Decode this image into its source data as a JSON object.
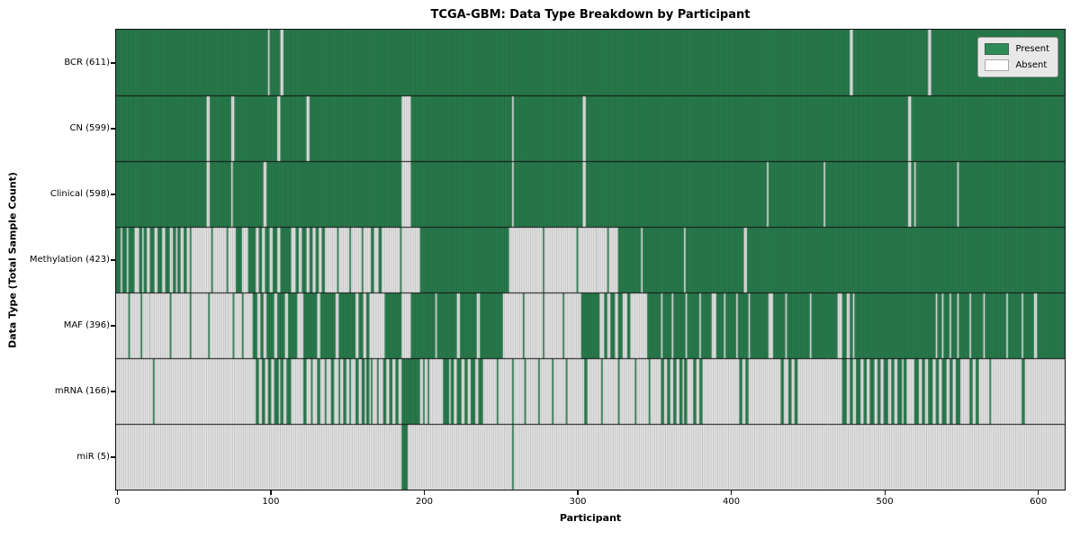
{
  "chart_data": {
    "type": "heatmap",
    "title": "TCGA-GBM: Data Type Breakdown by Participant",
    "xlabel": "Participant",
    "ylabel": "Data Type (Total Sample Count)",
    "x_ticks": [
      "0",
      "100",
      "200",
      "300",
      "400",
      "500",
      "600"
    ],
    "x_tick_values": [
      0,
      100,
      200,
      300,
      400,
      500,
      600
    ],
    "x_range": [
      -0.5,
      617.5
    ],
    "n_participants": 618,
    "grid": false,
    "legend_position": "upper right",
    "colors": {
      "present": "#2e8b57",
      "absent": "#ffffff",
      "bar_edge": "rgba(0,0,0,0.42)",
      "row_divider": "#111111",
      "legend_bg": "#e8e8e8"
    },
    "legend": {
      "entries": [
        {
          "label": "Present",
          "color": "#2e8b57"
        },
        {
          "label": "Absent",
          "color": "#ffffff"
        }
      ]
    },
    "rows": [
      {
        "label": "BCR (611)",
        "name": "BCR",
        "count": 611,
        "default": "present",
        "absent_runs": [
          [
            99,
            100
          ],
          [
            107,
            109
          ],
          [
            478,
            480
          ],
          [
            529,
            531
          ]
        ]
      },
      {
        "label": "CN (599)",
        "name": "CN",
        "count": 599,
        "default": "present",
        "absent_runs": [
          [
            59,
            61
          ],
          [
            75,
            77
          ],
          [
            105,
            107
          ],
          [
            124,
            126
          ],
          [
            186,
            192
          ],
          [
            258,
            259
          ],
          [
            304,
            306
          ],
          [
            516,
            518
          ]
        ]
      },
      {
        "label": "Clinical (598)",
        "name": "Clinical",
        "count": 598,
        "default": "present",
        "absent_runs": [
          [
            59,
            61
          ],
          [
            75,
            76
          ],
          [
            96,
            98
          ],
          [
            186,
            192
          ],
          [
            258,
            259
          ],
          [
            304,
            306
          ],
          [
            424,
            425
          ],
          [
            461,
            462
          ],
          [
            516,
            518
          ],
          [
            520,
            521
          ],
          [
            548,
            549
          ]
        ]
      },
      {
        "label": "Methylation (423)",
        "name": "Methylation",
        "count": 423,
        "default": "present",
        "absent_runs": [
          [
            3,
            4
          ],
          [
            7,
            8
          ],
          [
            12,
            15
          ],
          [
            17,
            18
          ],
          [
            20,
            22
          ],
          [
            25,
            27
          ],
          [
            30,
            32
          ],
          [
            35,
            37
          ],
          [
            39,
            40
          ],
          [
            42,
            44
          ],
          [
            46,
            48
          ],
          [
            49,
            62
          ],
          [
            63,
            72
          ],
          [
            73,
            78
          ],
          [
            82,
            86
          ],
          [
            91,
            93
          ],
          [
            95,
            97
          ],
          [
            100,
            102
          ],
          [
            105,
            107
          ],
          [
            114,
            117
          ],
          [
            119,
            121
          ],
          [
            124,
            126
          ],
          [
            128,
            130
          ],
          [
            132,
            134
          ],
          [
            136,
            144
          ],
          [
            145,
            152
          ],
          [
            153,
            160
          ],
          [
            161,
            166
          ],
          [
            168,
            171
          ],
          [
            173,
            185
          ],
          [
            186,
            198
          ],
          [
            256,
            278
          ],
          [
            279,
            300
          ],
          [
            301,
            313
          ],
          [
            313,
            320
          ],
          [
            321,
            327
          ],
          [
            342,
            343
          ],
          [
            370,
            371
          ],
          [
            409,
            411
          ]
        ]
      },
      {
        "label": "MAF (396)",
        "name": "MAF",
        "count": 396,
        "default": "present",
        "absent_runs": [
          [
            0,
            8
          ],
          [
            9,
            16
          ],
          [
            17,
            22
          ],
          [
            22,
            35
          ],
          [
            36,
            48
          ],
          [
            49,
            60
          ],
          [
            61,
            71
          ],
          [
            71,
            76
          ],
          [
            77,
            82
          ],
          [
            83,
            89
          ],
          [
            92,
            94
          ],
          [
            96,
            98
          ],
          [
            103,
            105
          ],
          [
            110,
            112
          ],
          [
            118,
            122
          ],
          [
            131,
            133
          ],
          [
            143,
            145
          ],
          [
            156,
            158
          ],
          [
            161,
            163
          ],
          [
            165,
            175
          ],
          [
            186,
            192
          ],
          [
            208,
            209
          ],
          [
            222,
            224
          ],
          [
            235,
            237
          ],
          [
            252,
            265
          ],
          [
            266,
            278
          ],
          [
            279,
            291
          ],
          [
            292,
            303
          ],
          [
            315,
            318
          ],
          [
            320,
            322
          ],
          [
            325,
            327
          ],
          [
            330,
            333
          ],
          [
            335,
            346
          ],
          [
            355,
            356
          ],
          [
            362,
            363
          ],
          [
            371,
            372
          ],
          [
            380,
            381
          ],
          [
            388,
            391
          ],
          [
            396,
            397
          ],
          [
            404,
            405
          ],
          [
            412,
            413
          ],
          [
            425,
            428
          ],
          [
            436,
            437
          ],
          [
            452,
            453
          ],
          [
            470,
            473
          ],
          [
            476,
            478
          ],
          [
            480,
            481
          ],
          [
            534,
            535
          ],
          [
            538,
            539
          ],
          [
            543,
            544
          ],
          [
            548,
            549
          ],
          [
            556,
            557
          ],
          [
            565,
            566
          ],
          [
            580,
            581
          ],
          [
            590,
            591
          ],
          [
            598,
            600
          ]
        ]
      },
      {
        "label": "mRNA (166)",
        "name": "mRNA",
        "count": 166,
        "default": "absent",
        "present_runs": [
          [
            24,
            25
          ],
          [
            91,
            93
          ],
          [
            95,
            97
          ],
          [
            99,
            101
          ],
          [
            103,
            106
          ],
          [
            107,
            109
          ],
          [
            111,
            114
          ],
          [
            122,
            124
          ],
          [
            127,
            128
          ],
          [
            131,
            133
          ],
          [
            136,
            137
          ],
          [
            140,
            142
          ],
          [
            145,
            146
          ],
          [
            148,
            150
          ],
          [
            152,
            153
          ],
          [
            156,
            158
          ],
          [
            160,
            162
          ],
          [
            163,
            165
          ],
          [
            166,
            167
          ],
          [
            170,
            171
          ],
          [
            174,
            176
          ],
          [
            178,
            180
          ],
          [
            182,
            184
          ],
          [
            186,
            198
          ],
          [
            200,
            201
          ],
          [
            203,
            204
          ],
          [
            213,
            217
          ],
          [
            218,
            220
          ],
          [
            222,
            225
          ],
          [
            227,
            229
          ],
          [
            231,
            234
          ],
          [
            236,
            239
          ],
          [
            248,
            249
          ],
          [
            258,
            259
          ],
          [
            266,
            267
          ],
          [
            275,
            276
          ],
          [
            284,
            285
          ],
          [
            293,
            294
          ],
          [
            305,
            307
          ],
          [
            316,
            317
          ],
          [
            327,
            328
          ],
          [
            338,
            339
          ],
          [
            347,
            348
          ],
          [
            355,
            357
          ],
          [
            359,
            361
          ],
          [
            363,
            365
          ],
          [
            367,
            369
          ],
          [
            370,
            372
          ],
          [
            376,
            378
          ],
          [
            380,
            382
          ],
          [
            406,
            408
          ],
          [
            410,
            412
          ],
          [
            433,
            435
          ],
          [
            438,
            440
          ],
          [
            442,
            444
          ],
          [
            473,
            476
          ],
          [
            478,
            480
          ],
          [
            482,
            485
          ],
          [
            487,
            489
          ],
          [
            491,
            494
          ],
          [
            496,
            498
          ],
          [
            500,
            503
          ],
          [
            505,
            507
          ],
          [
            509,
            512
          ],
          [
            513,
            515
          ],
          [
            520,
            523
          ],
          [
            525,
            527
          ],
          [
            529,
            532
          ],
          [
            534,
            536
          ],
          [
            538,
            541
          ],
          [
            543,
            545
          ],
          [
            547,
            550
          ],
          [
            556,
            558
          ],
          [
            560,
            562
          ],
          [
            569,
            570
          ],
          [
            590,
            592
          ]
        ]
      },
      {
        "label": "miR (5)",
        "name": "miR",
        "count": 5,
        "default": "absent",
        "present_runs": [
          [
            186,
            190
          ],
          [
            258,
            259
          ]
        ]
      }
    ]
  }
}
